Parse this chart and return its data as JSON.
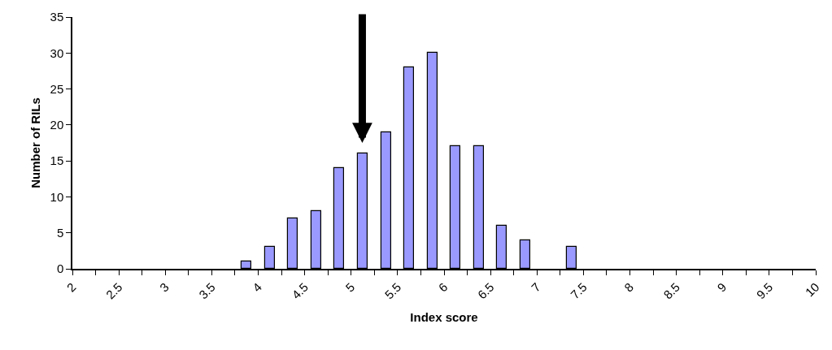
{
  "chart_data": {
    "type": "histogram",
    "xlabel": "Index score",
    "ylabel": "Number of RILs",
    "color": "#9999ff",
    "bins": [
      2,
      2.25,
      2.5,
      2.75,
      3,
      3.25,
      3.5,
      3.75,
      4,
      4.25,
      4.5,
      4.75,
      5,
      5.25,
      5.5,
      5.75,
      6,
      6.25,
      6.5,
      6.75,
      7,
      7.25,
      7.5,
      7.75,
      8,
      8.25,
      8.5,
      8.75,
      9,
      9.25,
      9.5,
      9.75,
      10
    ],
    "values": [
      0,
      0,
      0,
      0,
      0,
      0,
      0,
      1,
      3,
      7,
      8,
      14,
      16,
      19,
      28,
      30,
      17,
      17,
      6,
      4,
      0,
      3,
      0,
      0,
      0,
      0,
      0,
      0,
      0,
      0,
      0,
      0
    ],
    "xlim": [
      2,
      10
    ],
    "ylim": [
      0,
      35
    ],
    "yticks": [
      0,
      5,
      10,
      15,
      20,
      25,
      30,
      35
    ],
    "xticks": [
      2,
      {
        "value": 2.25,
        "label": null
      },
      2.5,
      {
        "value": 2.75,
        "label": null
      },
      3,
      {
        "value": 3.25,
        "label": null
      },
      3.5,
      {
        "value": 3.75,
        "label": null
      },
      4,
      {
        "value": 4.25,
        "label": null
      },
      4.5,
      {
        "value": 4.75,
        "label": null
      },
      5,
      {
        "value": 5.25,
        "label": null
      },
      5.5,
      {
        "value": 5.75,
        "label": null
      },
      6,
      {
        "value": 6.25,
        "label": null
      },
      6.5,
      {
        "value": 6.75,
        "label": null
      },
      7,
      {
        "value": 7.25,
        "label": null
      },
      7.5,
      {
        "value": 7.75,
        "label": null
      },
      8,
      {
        "value": 8.25,
        "label": null
      },
      8.5,
      {
        "value": 8.75,
        "label": null
      },
      9,
      {
        "value": 9.25,
        "label": null
      },
      9.5,
      {
        "value": 9.75,
        "label": null
      },
      10
    ],
    "tick_labels": true
  }
}
